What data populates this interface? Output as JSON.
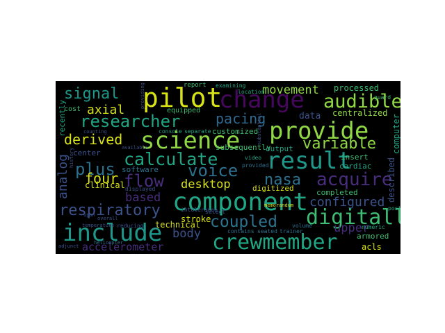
{
  "palette": {
    "background": "#000000",
    "yellow": "#d8e219",
    "lightgreen": "#8fd744",
    "green": "#3fbc73",
    "teal": "#21a685",
    "teal2": "#1f988b",
    "blue": "#2c728e",
    "blue2": "#31688e",
    "indigo": "#3b528b",
    "indigo2": "#472d7b",
    "purple": "#46085c"
  },
  "words": [
    {
      "text": "pilot",
      "size": 5,
      "color": "yellow"
    },
    {
      "text": "change",
      "size": 5,
      "color": "purple"
    },
    {
      "text": "science",
      "size": 5,
      "color": "lightgreen"
    },
    {
      "text": "provide",
      "size": 5,
      "color": "lightgreen"
    },
    {
      "text": "component",
      "size": 5,
      "color": "teal"
    },
    {
      "text": "result",
      "size": 5,
      "color": "teal2"
    },
    {
      "text": "include",
      "size": 5,
      "color": "teal2"
    },
    {
      "text": "crewmember",
      "size": 5,
      "color": "teal"
    },
    {
      "text": "digitally",
      "size": 4,
      "color": "green"
    },
    {
      "text": "audible",
      "size": 4,
      "color": "lightgreen"
    },
    {
      "text": "researcher",
      "size": 4,
      "color": "teal"
    },
    {
      "text": "signal",
      "size": 4,
      "color": "teal2"
    },
    {
      "text": "calculate",
      "size": 4,
      "color": "teal"
    },
    {
      "text": "variable",
      "size": 4,
      "color": "lightgreen"
    },
    {
      "text": "acquire",
      "size": 4,
      "color": "indigo2"
    },
    {
      "text": "voice",
      "size": 4,
      "color": "blue"
    },
    {
      "text": "flow",
      "size": 4,
      "color": "indigo2"
    },
    {
      "text": "plus",
      "size": 4,
      "color": "blue"
    },
    {
      "text": "four",
      "size": 4,
      "color": "yellow"
    },
    {
      "text": "coupled",
      "size": 4,
      "color": "blue"
    },
    {
      "text": "respiratory",
      "size": 4,
      "color": "indigo"
    },
    {
      "text": "pacing",
      "size": 3,
      "color": "blue2"
    },
    {
      "text": "derived",
      "size": 3,
      "color": "yellow"
    },
    {
      "text": "nasa",
      "size": 3,
      "color": "blue"
    },
    {
      "text": "configured",
      "size": 3,
      "color": "indigo"
    },
    {
      "text": "movement",
      "size": 3,
      "color": "lightgreen"
    },
    {
      "text": "axial",
      "size": 3,
      "color": "yellow"
    },
    {
      "text": "upper",
      "size": 3,
      "color": "indigo2"
    },
    {
      "text": "based",
      "size": 3,
      "color": "indigo2"
    },
    {
      "text": "desktop",
      "size": 3,
      "color": "yellow"
    },
    {
      "text": "body",
      "size": 3,
      "color": "indigo"
    },
    {
      "text": "analog",
      "size": 3,
      "color": "indigo"
    },
    {
      "text": "processed",
      "size": 2,
      "color": "green"
    },
    {
      "text": "data",
      "size": 2,
      "color": "indigo"
    },
    {
      "text": "accelerometer",
      "size": 2,
      "color": "indigo2"
    },
    {
      "text": "centralized",
      "size": 2,
      "color": "lightgreen"
    },
    {
      "text": "customized",
      "size": 2,
      "color": "green"
    },
    {
      "text": "subsequently",
      "size": 2,
      "color": "green"
    },
    {
      "text": "software",
      "size": 2,
      "color": "blue"
    },
    {
      "text": "clinical",
      "size": 2,
      "color": "yellow"
    },
    {
      "text": "technical",
      "size": 2,
      "color": "yellow"
    },
    {
      "text": "stroke",
      "size": 2,
      "color": "yellow"
    },
    {
      "text": "digitized",
      "size": 2,
      "color": "yellow"
    },
    {
      "text": "memorandum",
      "size": 2,
      "color": "yellow"
    },
    {
      "text": "equipped",
      "size": 2,
      "color": "green"
    },
    {
      "text": "recently",
      "size": 2,
      "color": "teal"
    },
    {
      "text": "cost",
      "size": 2,
      "color": "green"
    },
    {
      "text": "center",
      "size": 2,
      "color": "indigo"
    },
    {
      "text": "output",
      "size": 2,
      "color": "teal"
    },
    {
      "text": "cardiac",
      "size": 2,
      "color": "teal"
    },
    {
      "text": "insert",
      "size": 2,
      "color": "green"
    },
    {
      "text": "completed",
      "size": 2,
      "color": "green"
    },
    {
      "text": "described",
      "size": 2,
      "color": "indigo"
    },
    {
      "text": "computer",
      "size": 2,
      "color": "teal"
    },
    {
      "text": "armored",
      "size": 2,
      "color": "green"
    },
    {
      "text": "acls",
      "size": 2,
      "color": "yellow"
    },
    {
      "text": "report",
      "size": 1,
      "color": "green"
    },
    {
      "text": "console",
      "size": 1,
      "color": "teal"
    },
    {
      "text": "separate",
      "size": 1,
      "color": "teal"
    },
    {
      "text": "video",
      "size": 1,
      "color": "teal"
    },
    {
      "text": "provided",
      "size": 1,
      "color": "blue"
    },
    {
      "text": "displayed",
      "size": 1,
      "color": "indigo"
    },
    {
      "text": "contains",
      "size": 1,
      "color": "blue"
    },
    {
      "text": "seated",
      "size": 1,
      "color": "blue"
    },
    {
      "text": "trainer",
      "size": 1,
      "color": "blue"
    },
    {
      "text": "volume",
      "size": 1,
      "color": "blue"
    },
    {
      "text": "guard",
      "size": 1,
      "color": "green"
    },
    {
      "text": "examining",
      "size": 1,
      "color": "teal"
    },
    {
      "text": "location",
      "size": 1,
      "color": "teal"
    },
    {
      "text": "helicopter",
      "size": 1,
      "color": "blue"
    },
    {
      "text": "numeric",
      "size": 1,
      "color": "teal"
    },
    {
      "text": "post",
      "size": 1,
      "color": "teal"
    },
    {
      "text": "temperature",
      "size": 1,
      "color": "indigo"
    },
    {
      "text": "reducing",
      "size": 1,
      "color": "indigo"
    },
    {
      "text": "intolerance",
      "size": 1,
      "color": "indigo"
    },
    {
      "text": "adjunct",
      "size": 1,
      "color": "indigo"
    },
    {
      "text": "select",
      "size": 1,
      "color": "indigo"
    },
    {
      "text": "upon",
      "size": 1,
      "color": "indigo"
    },
    {
      "text": "overall",
      "size": 1,
      "color": "indigo"
    },
    {
      "text": "substantial",
      "size": 1,
      "color": "indigo"
    },
    {
      "text": "counting",
      "size": 1,
      "color": "indigo"
    },
    {
      "text": "history",
      "size": 1,
      "color": "indigo"
    },
    {
      "text": "available",
      "size": 1,
      "color": "indigo"
    },
    {
      "text": "providing",
      "size": 1,
      "color": "indigo"
    }
  ]
}
